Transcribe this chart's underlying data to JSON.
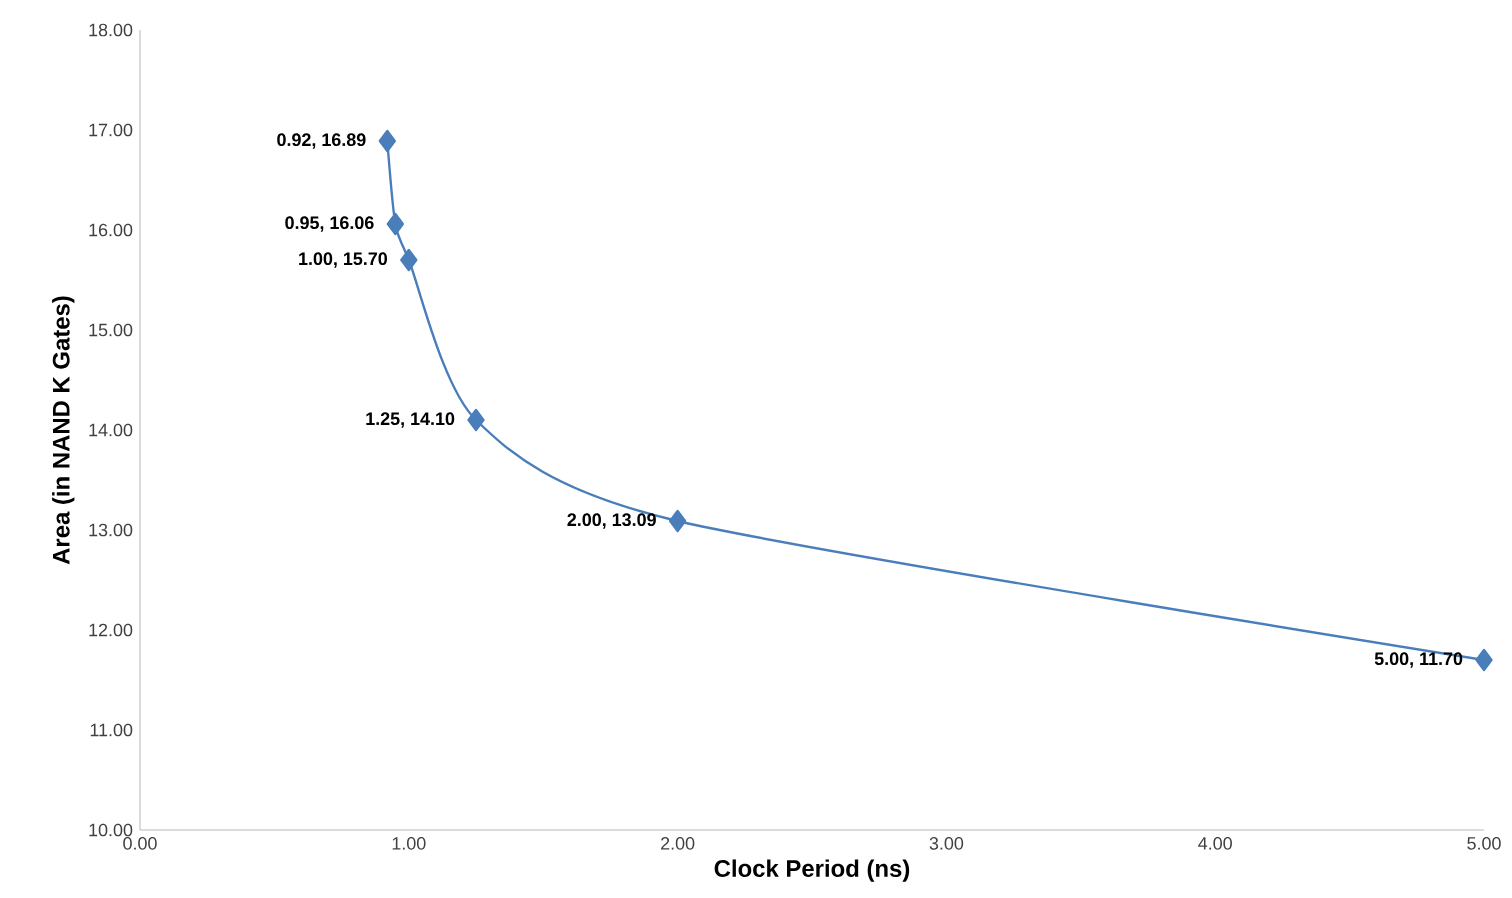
{
  "chart_data": {
    "type": "line",
    "xlabel": "Clock Period (ns)",
    "ylabel": "Area (in NAND K Gates)",
    "x": [
      0.92,
      0.95,
      1.0,
      1.25,
      2.0,
      5.0
    ],
    "series": [
      {
        "color": "#4a7ebb",
        "values": [
          16.89,
          16.06,
          15.7,
          14.1,
          13.09,
          11.7
        ],
        "value_labels": [
          "0.92, 16.89",
          "0.95, 16.06",
          "1.00, 15.70",
          "1.25, 14.10",
          "2.00, 13.09",
          "5.00, 11.70"
        ]
      }
    ],
    "xlim": [
      0,
      5
    ],
    "ylim": [
      10,
      18
    ],
    "xticks": [
      {
        "value": 0,
        "label": "0.00"
      },
      {
        "value": 1,
        "label": "1.00"
      },
      {
        "value": 2,
        "label": "2.00"
      },
      {
        "value": 3,
        "label": "3.00"
      },
      {
        "value": 4,
        "label": "4.00"
      },
      {
        "value": 5,
        "label": "5.00"
      }
    ],
    "yticks": [
      {
        "value": 10,
        "label": "10.00"
      },
      {
        "value": 11,
        "label": "11.00"
      },
      {
        "value": 12,
        "label": "12.00"
      },
      {
        "value": 13,
        "label": "13.00"
      },
      {
        "value": 14,
        "label": "14.00"
      },
      {
        "value": 15,
        "label": "15.00"
      },
      {
        "value": 16,
        "label": "16.00"
      },
      {
        "value": 17,
        "label": "17.00"
      },
      {
        "value": 18,
        "label": "18.00"
      }
    ],
    "marker": "diamond",
    "line_style": "solid",
    "grid": false
  }
}
